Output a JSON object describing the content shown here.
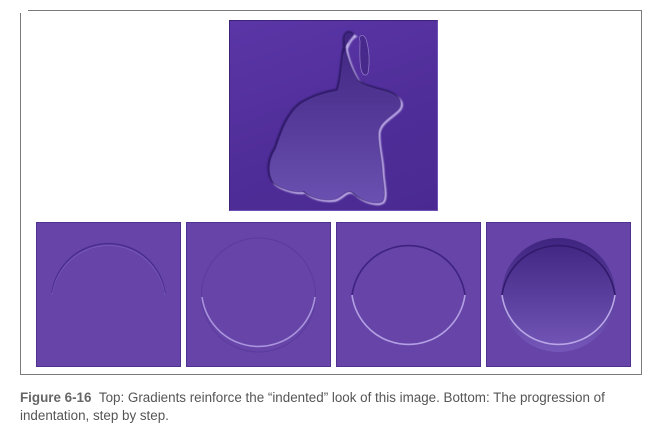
{
  "figure": {
    "label": "Figure 6-16",
    "caption_text": "Top: Gradients reinforce the “indented” look of this image. Bottom: The progression of indentation, step by step.",
    "colors": {
      "panel_purple": "#6644a8",
      "bunny_panel_purple": "#5230a0",
      "highlight": "#b7a6e2",
      "shadow": "#3a1f78"
    },
    "top_image": {
      "subject": "rabbit silhouette, indented with gradient"
    },
    "bottom_steps": [
      {
        "step": 1,
        "description": "circle with shadow at top edge only"
      },
      {
        "step": 2,
        "description": "circle with highlight at bottom edge"
      },
      {
        "step": 3,
        "description": "circle with shadow on top and highlight on bottom"
      },
      {
        "step": 4,
        "description": "circle with added inner gradient"
      }
    ]
  }
}
